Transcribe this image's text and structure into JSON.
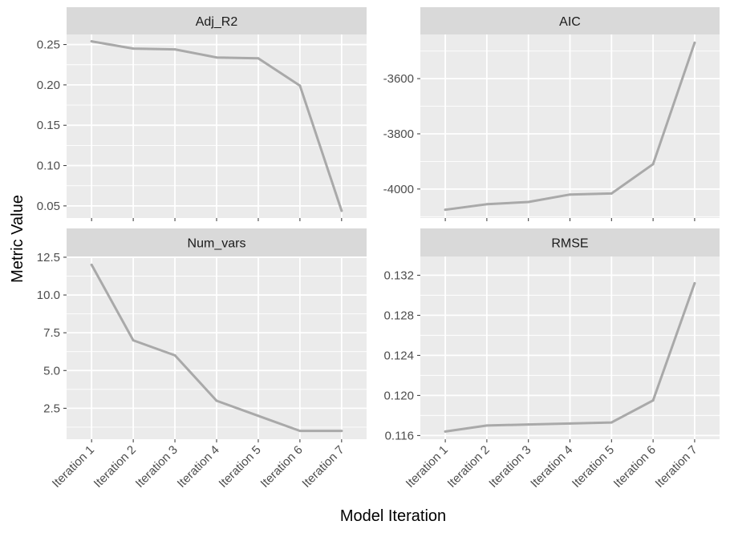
{
  "chart_data": {
    "type": "line",
    "xlabel": "Model Iteration",
    "ylabel": "Metric Value",
    "categories": [
      "Iteration 1",
      "Iteration 2",
      "Iteration 3",
      "Iteration 4",
      "Iteration 5",
      "Iteration 6",
      "Iteration 7"
    ],
    "grid": true,
    "line_color": "#A9A9A9",
    "panel_background": "#EBEBEB",
    "strip_background": "#D9D9D9",
    "gridline_color": "#FFFFFF",
    "facets": [
      {
        "title": "Adj_R2",
        "values": [
          0.254,
          0.245,
          0.244,
          0.234,
          0.233,
          0.199,
          0.044
        ],
        "ylim": [
          0.035,
          0.2625
        ],
        "yticks": [
          0.05,
          0.1,
          0.15,
          0.2,
          0.25
        ],
        "ytick_labels": [
          "0.05",
          "0.10",
          "0.15",
          "0.20",
          "0.25"
        ],
        "show_xticks": false
      },
      {
        "title": "AIC",
        "values": [
          -4075,
          -4055,
          -4047,
          -4020,
          -4016,
          -3910,
          -3470
        ],
        "ylim": [
          -4105,
          -3440
        ],
        "yticks": [
          -4000,
          -3800,
          -3600
        ],
        "ytick_labels": [
          "-4000",
          "-3800",
          "-3600"
        ],
        "show_xticks": false
      },
      {
        "title": "Num_vars",
        "values": [
          12,
          7,
          6,
          3,
          2,
          1,
          1
        ],
        "ylim": [
          0.45,
          12.55
        ],
        "yticks": [
          2.5,
          5.0,
          7.5,
          10.0,
          12.5
        ],
        "ytick_labels": [
          "2.5",
          "5.0",
          "7.5",
          "10.0",
          "12.5"
        ],
        "show_xticks": true
      },
      {
        "title": "RMSE",
        "values": [
          0.1164,
          0.117,
          0.1171,
          0.1172,
          0.1173,
          0.1195,
          0.1312
        ],
        "ylim": [
          0.11563,
          0.13387
        ],
        "yticks": [
          0.116,
          0.12,
          0.124,
          0.128,
          0.132
        ],
        "ytick_labels": [
          "0.116",
          "0.120",
          "0.124",
          "0.128",
          "0.132"
        ],
        "show_xticks": true
      }
    ]
  }
}
